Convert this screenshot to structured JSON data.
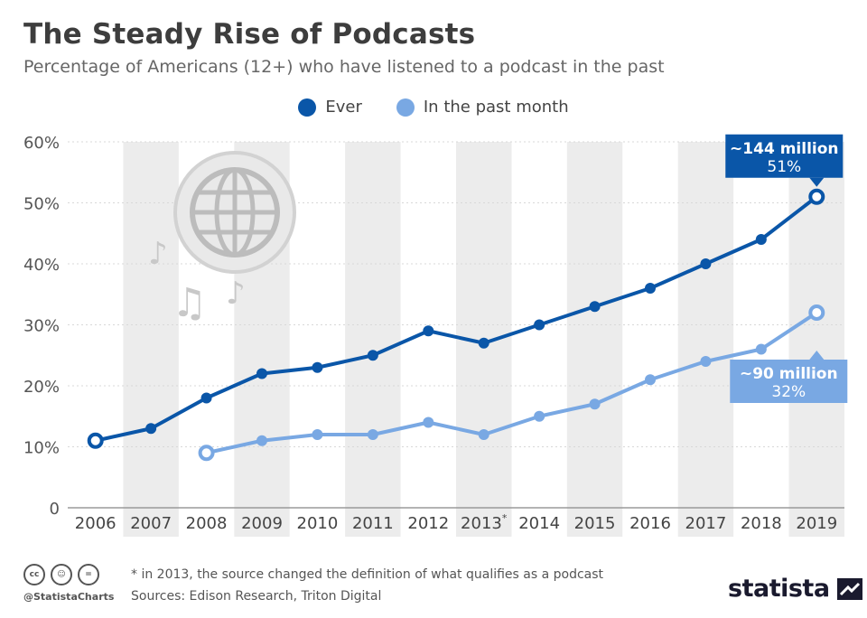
{
  "header": {
    "title": "The Steady Rise of Podcasts",
    "subtitle": "Percentage of Americans (12+) who have listened to a podcast in the past"
  },
  "legend": [
    {
      "label": "Ever",
      "color": "#0a56a8"
    },
    {
      "label": "In the past month",
      "color": "#79a8e3"
    }
  ],
  "footer": {
    "note": "* in 2013, the source changed the definition of what qualifies as a podcast",
    "sources": "Sources: Edison Research, Triton Digital",
    "handle": "@StatistaCharts",
    "brand": "statista",
    "license_icons": [
      "cc-icon",
      "by-icon",
      "nd-icon"
    ],
    "license_glyphs": [
      "cc",
      "☺",
      "="
    ]
  },
  "decoration": {
    "icons": [
      "globe-icon",
      "music-note-icon"
    ]
  },
  "chart_data": {
    "type": "line",
    "x": [
      "2006",
      "2007",
      "2008",
      "2009",
      "2010",
      "2011",
      "2012",
      "2013*",
      "2014",
      "2015",
      "2016",
      "2017",
      "2018",
      "2019"
    ],
    "ylim": [
      0,
      60
    ],
    "yticks": [
      "0",
      "10%",
      "20%",
      "30%",
      "40%",
      "50%",
      "60%"
    ],
    "ytick_values": [
      0,
      10,
      20,
      30,
      40,
      50,
      60
    ],
    "grid": true,
    "legend_position": "top-center",
    "series": [
      {
        "name": "Ever",
        "color": "#0a56a8",
        "values": [
          11,
          13,
          18,
          22,
          23,
          25,
          29,
          27,
          30,
          33,
          36,
          40,
          44,
          51
        ]
      },
      {
        "name": "In the past month",
        "color": "#79a8e3",
        "values": [
          null,
          null,
          9,
          11,
          12,
          12,
          14,
          12,
          15,
          17,
          21,
          24,
          26,
          32
        ]
      }
    ],
    "annotations": [
      {
        "series": 0,
        "x": "2019",
        "line1": "~144 million",
        "line2": "51%"
      },
      {
        "series": 1,
        "x": "2019",
        "line1": "~90 million",
        "line2": "32%"
      }
    ]
  }
}
